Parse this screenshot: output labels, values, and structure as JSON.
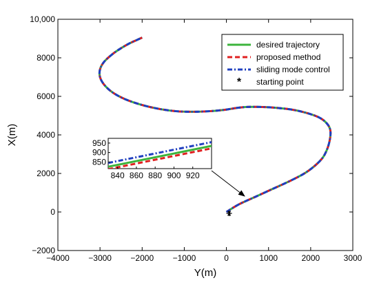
{
  "chart_data": {
    "type": "line",
    "xlabel": "Y(m)",
    "ylabel": "X(m)",
    "xlim": [
      -4000,
      3000
    ],
    "ylim": [
      -2000,
      10000
    ],
    "xticks": [
      "−4000",
      "−3000",
      "−2000",
      "−1000",
      "0",
      "1000",
      "2000",
      "3000"
    ],
    "yticks": [
      "−2000",
      "0",
      "2000",
      "4000",
      "6000",
      "8000",
      "10,000"
    ],
    "xtick_values": [
      -4000,
      -3000,
      -2000,
      -1000,
      0,
      1000,
      2000,
      3000
    ],
    "ytick_values": [
      -2000,
      0,
      2000,
      4000,
      6000,
      8000,
      10000
    ],
    "legend_position": "top-right",
    "grid": false,
    "series": [
      {
        "name": "desired trajectory",
        "color": "#3cb43c",
        "style": "solid",
        "x": [
          0,
          300,
          700,
          1100,
          1500,
          1850,
          2100,
          2280,
          2380,
          2440,
          2470,
          2460,
          2400,
          2280,
          2100,
          1800,
          1500,
          1100,
          800,
          500,
          250,
          -50,
          -400,
          -800,
          -1200,
          -1600,
          -2000,
          -2400,
          -2700,
          -2900,
          -3000,
          -3000,
          -2900,
          -2700,
          -2500,
          -2300,
          -2100,
          -2000
        ],
        "y": [
          0,
          400,
          800,
          1200,
          1600,
          2000,
          2400,
          2800,
          3200,
          3600,
          4000,
          4300,
          4550,
          4800,
          5000,
          5200,
          5330,
          5420,
          5450,
          5450,
          5400,
          5300,
          5230,
          5200,
          5230,
          5350,
          5550,
          5850,
          6200,
          6600,
          7000,
          7400,
          7800,
          8200,
          8500,
          8750,
          8950,
          9050
        ]
      },
      {
        "name": "proposed method",
        "color": "#e02020",
        "style": "dashed",
        "x": [
          0,
          300,
          700,
          1100,
          1500,
          1850,
          2100,
          2280,
          2380,
          2440,
          2470,
          2460,
          2400,
          2280,
          2100,
          1800,
          1500,
          1100,
          800,
          500,
          250,
          -50,
          -400,
          -800,
          -1200,
          -1600,
          -2000,
          -2400,
          -2700,
          -2900,
          -3000,
          -3000,
          -2900,
          -2700,
          -2500,
          -2300,
          -2100,
          -2000
        ],
        "y": [
          0,
          400,
          800,
          1200,
          1600,
          2000,
          2400,
          2800,
          3200,
          3600,
          4000,
          4300,
          4550,
          4800,
          5000,
          5200,
          5330,
          5420,
          5450,
          5450,
          5400,
          5300,
          5230,
          5200,
          5230,
          5350,
          5550,
          5850,
          6200,
          6600,
          7000,
          7400,
          7800,
          8200,
          8500,
          8750,
          8950,
          9050
        ]
      },
      {
        "name": "sliding mode control",
        "color": "#1f3fbf",
        "style": "dashdot",
        "x": [
          0,
          300,
          700,
          1100,
          1500,
          1850,
          2100,
          2280,
          2380,
          2440,
          2470,
          2460,
          2400,
          2280,
          2100,
          1800,
          1500,
          1100,
          800,
          500,
          250,
          -50,
          -400,
          -800,
          -1200,
          -1600,
          -2000,
          -2400,
          -2700,
          -2900,
          -3000,
          -3000,
          -2900,
          -2700,
          -2500,
          -2300,
          -2100,
          -2000
        ],
        "y": [
          0,
          400,
          800,
          1200,
          1600,
          2000,
          2400,
          2800,
          3200,
          3600,
          4000,
          4300,
          4550,
          4800,
          5000,
          5200,
          5330,
          5420,
          5450,
          5450,
          5400,
          5300,
          5230,
          5200,
          5230,
          5350,
          5550,
          5850,
          6200,
          6600,
          7000,
          7400,
          7800,
          8200,
          8500,
          8750,
          8950,
          9050
        ]
      },
      {
        "name": "starting point",
        "marker": "*",
        "color": "#000000",
        "x": [
          0
        ],
        "y": [
          0
        ]
      }
    ],
    "inset": {
      "xlim": [
        830,
        940
      ],
      "ylim": [
        815,
        975
      ],
      "xticks": [
        "840",
        "860",
        "880",
        "900",
        "920"
      ],
      "yticks": [
        "850",
        "900",
        "950"
      ],
      "xtick_values": [
        840,
        860,
        880,
        900,
        920
      ],
      "ytick_values": [
        850,
        900,
        950
      ],
      "series": [
        {
          "name": "desired trajectory",
          "x": [
            830,
            940
          ],
          "y": [
            825,
            935
          ]
        },
        {
          "name": "proposed method",
          "x": [
            830,
            940
          ],
          "y": [
            812,
            922
          ]
        },
        {
          "name": "sliding mode control",
          "x": [
            830,
            940
          ],
          "y": [
            845,
            955
          ]
        }
      ]
    }
  }
}
